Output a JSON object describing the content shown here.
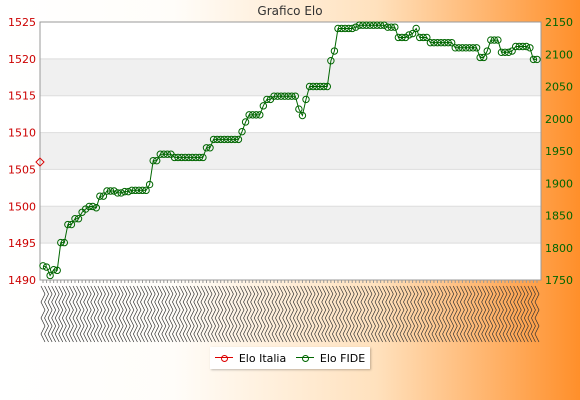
{
  "chart_data": {
    "type": "line",
    "title": "Grafico Elo",
    "y_left_range": [
      1490,
      1525
    ],
    "y_left_ticks": [
      1490,
      1495,
      1500,
      1505,
      1510,
      1515,
      1520,
      1525
    ],
    "y_right_range": [
      1750,
      2150
    ],
    "y_right_ticks": [
      1750,
      1800,
      1850,
      1900,
      1950,
      2000,
      2050,
      2100,
      2150
    ],
    "x_tick_labels_note": "dense overlapping rotated date labels, illegible",
    "grid": true,
    "legend_position": "bottom-center",
    "series": [
      {
        "name": "Elo Italia",
        "axis": "left",
        "color": "#dd0000",
        "marker": "diamond",
        "values": [
          1506
        ]
      },
      {
        "name": "Elo FIDE",
        "axis": "right",
        "color": "#006600",
        "marker": "circle",
        "values": [
          1772,
          1770,
          1757,
          1766,
          1765,
          1808,
          1808,
          1836,
          1836,
          1845,
          1845,
          1855,
          1860,
          1864,
          1864,
          1862,
          1880,
          1880,
          1888,
          1888,
          1888,
          1885,
          1885,
          1887,
          1887,
          1889,
          1889,
          1889,
          1889,
          1889,
          1898,
          1935,
          1935,
          1945,
          1945,
          1945,
          1945,
          1940,
          1940,
          1940,
          1940,
          1940,
          1940,
          1940,
          1940,
          1940,
          1955,
          1955,
          1968,
          1968,
          1968,
          1968,
          1968,
          1968,
          1968,
          1968,
          1980,
          1995,
          2006,
          2006,
          2006,
          2006,
          2020,
          2030,
          2030,
          2035,
          2035,
          2035,
          2035,
          2035,
          2035,
          2035,
          2015,
          2005,
          2030,
          2050,
          2050,
          2050,
          2050,
          2050,
          2050,
          2090,
          2105,
          2140,
          2140,
          2140,
          2140,
          2140,
          2142,
          2145,
          2145,
          2145,
          2145,
          2145,
          2145,
          2145,
          2145,
          2142,
          2142,
          2142,
          2126,
          2126,
          2126,
          2130,
          2132,
          2140,
          2126,
          2126,
          2126,
          2118,
          2118,
          2118,
          2118,
          2118,
          2118,
          2118,
          2110,
          2110,
          2110,
          2110,
          2110,
          2110,
          2110,
          2095,
          2095,
          2105,
          2122,
          2122,
          2122,
          2103,
          2103,
          2103,
          2105,
          2112,
          2112,
          2112,
          2112,
          2110,
          2092,
          2092
        ]
      }
    ]
  }
}
